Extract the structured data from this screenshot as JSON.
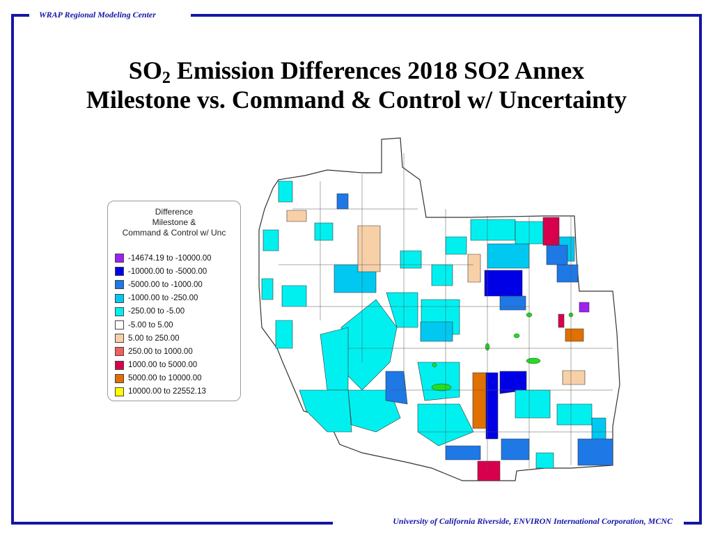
{
  "header": {
    "label": "WRAP Regional Modeling Center"
  },
  "footer": {
    "label": "University of California Riverside, ENVIRON International Corporation, MCNC"
  },
  "title": {
    "prefix": "SO",
    "subscript": "2",
    "line1_rest": " Emission Differences 2018 SO2 Annex",
    "line2": "Milestone vs. Command & Control w/ Uncertainty"
  },
  "legend": {
    "title_lines": [
      "Difference",
      "Milestone &",
      "Command & Control w/ Unc"
    ],
    "items": [
      {
        "label": "-14674.19 to -10000.00",
        "color": "#a020f0"
      },
      {
        "label": "-10000.00 to -5000.00",
        "color": "#0000e6"
      },
      {
        "label": "-5000.00 to -1000.00",
        "color": "#1e78e6"
      },
      {
        "label": "-1000.00 to -250.00",
        "color": "#00c8f0"
      },
      {
        "label": "-250.00 to -5.00",
        "color": "#00f0f0"
      },
      {
        "label": "-5.00 to 5.00",
        "color": "#ffffff"
      },
      {
        "label": "5.00 to 250.00",
        "color": "#f8d0a8"
      },
      {
        "label": "250.00 to 1000.00",
        "color": "#f06060"
      },
      {
        "label": "1000.00 to 5000.00",
        "color": "#d8004c"
      },
      {
        "label": "5000.00 to 10000.00",
        "color": "#e07000"
      },
      {
        "label": "10000.00 to 22552.13",
        "color": "#ffff00"
      }
    ]
  },
  "colors": {
    "frame": "#1515a8",
    "lakes": "#20e020",
    "county_border": "#333333"
  }
}
